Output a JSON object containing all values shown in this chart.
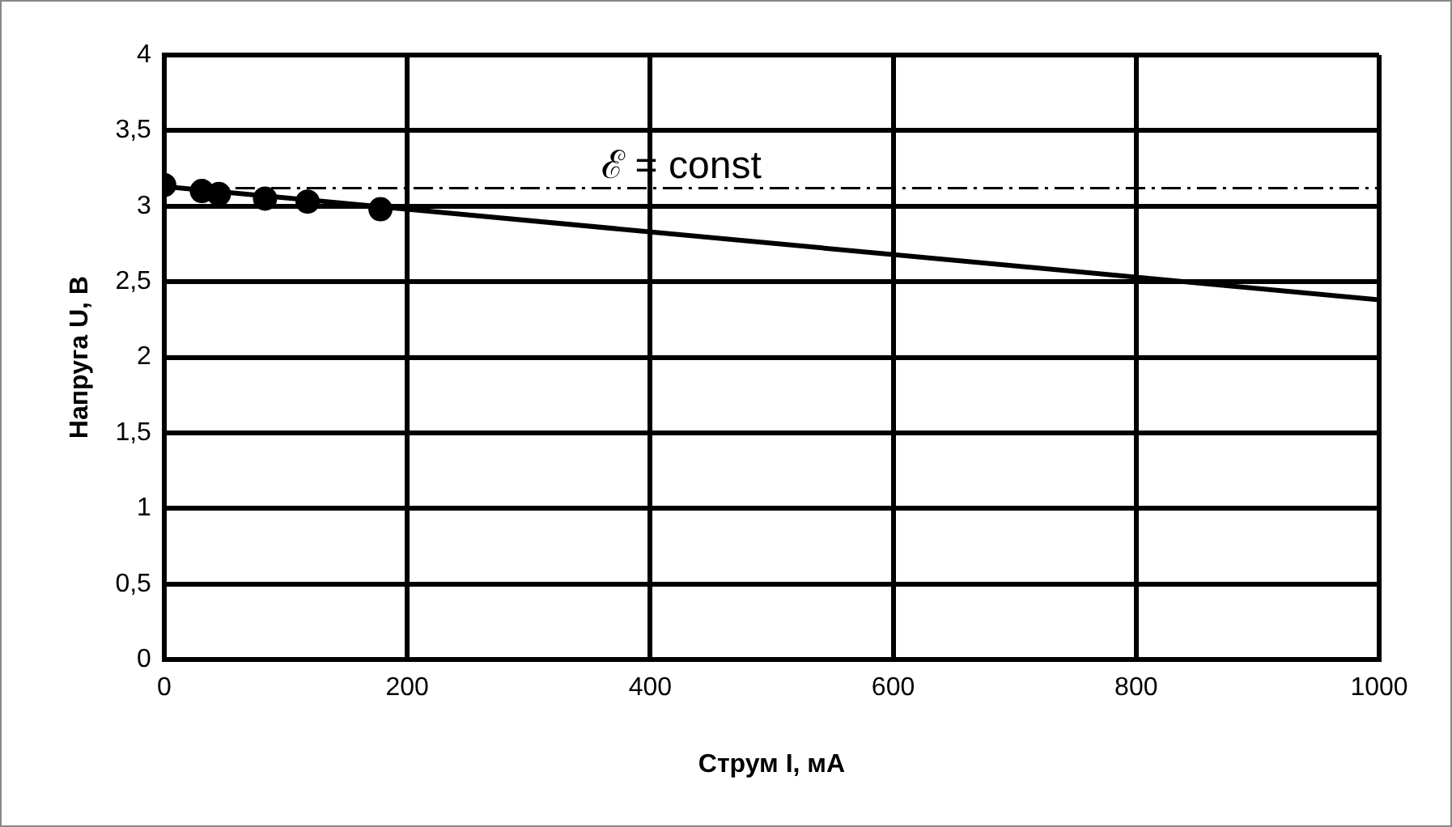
{
  "chart_data": {
    "type": "scatter",
    "xlabel": "Струм I, мА",
    "ylabel": "Напруга U, В",
    "xlim": [
      0,
      1000
    ],
    "xticks": [
      0,
      200,
      400,
      600,
      800,
      1000
    ],
    "ylim": [
      0,
      4
    ],
    "yticks": [
      0,
      {
        "value": 0.5,
        "label": "0,5"
      },
      1,
      {
        "value": 1.5,
        "label": "1,5"
      },
      2,
      {
        "value": 2.5,
        "label": "2,5"
      },
      3,
      {
        "value": 3.5,
        "label": "3,5"
      },
      4
    ],
    "grid": true,
    "legend": false,
    "marker": "circle",
    "series": [
      {
        "color": "#000000",
        "x": [
          0,
          31,
          45,
          83,
          118,
          178
        ],
        "values": [
          3.14,
          3.1,
          3.08,
          3.05,
          3.03,
          2.98
        ]
      },
      {
        "type": "line",
        "color": "#000000",
        "marker": "none",
        "x": [
          0,
          1000
        ],
        "values": [
          3.13,
          2.38
        ]
      }
    ],
    "ref_lines": [
      {
        "axis": "y",
        "value": 3.12,
        "label": "ℰ = const",
        "line_style": "dashdot",
        "color": "#000000"
      }
    ]
  }
}
